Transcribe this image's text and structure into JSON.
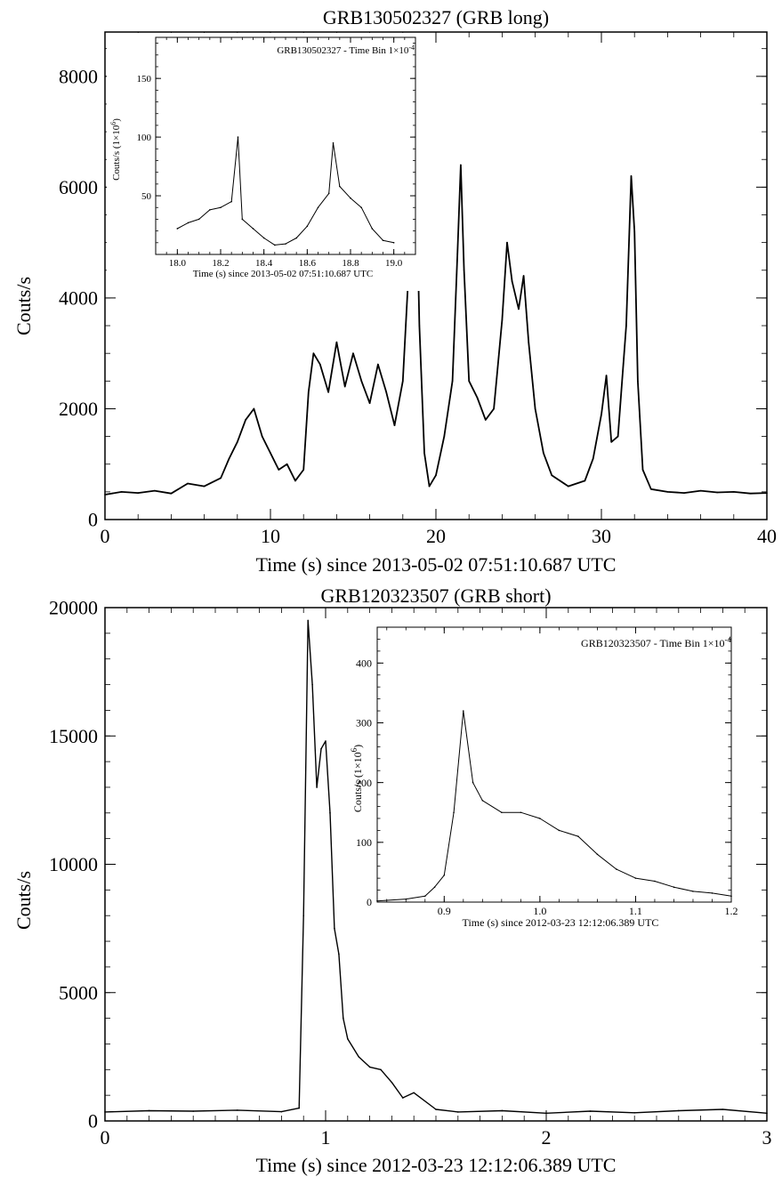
{
  "chart_data": [
    {
      "type": "line",
      "title": "GRB130502327 (GRB long)",
      "xlabel": "Time (s) since 2013-05-02 07:51:10.687 UTC",
      "ylabel": "Couts/s",
      "xlim": [
        0,
        40
      ],
      "ylim": [
        0,
        8800
      ],
      "xticks": [
        0,
        10,
        20,
        30,
        40
      ],
      "yticks": [
        0,
        2000,
        4000,
        6000,
        8000
      ],
      "grid": false,
      "series": [
        {
          "color": "#000000",
          "x": [
            0,
            1,
            2,
            3,
            4,
            5,
            6,
            7,
            7.5,
            8,
            8.5,
            9,
            9.5,
            10,
            10.5,
            11,
            11.5,
            12,
            12.3,
            12.6,
            13,
            13.5,
            14,
            14.5,
            15,
            15.5,
            16,
            16.5,
            17,
            17.5,
            18,
            18.3,
            18.6,
            18.8,
            19,
            19.3,
            19.6,
            20,
            20.5,
            21,
            21.3,
            21.5,
            21.7,
            22,
            22.5,
            23,
            23.5,
            24,
            24.3,
            24.6,
            25,
            25.3,
            25.6,
            26,
            26.5,
            27,
            28,
            29,
            29.5,
            30,
            30.3,
            30.6,
            31,
            31.5,
            31.8,
            32,
            32.2,
            32.5,
            33,
            34,
            35,
            36,
            37,
            38,
            39,
            40
          ],
          "y": [
            450,
            500,
            480,
            520,
            470,
            650,
            600,
            750,
            1100,
            1400,
            1800,
            2000,
            1500,
            1200,
            900,
            1000,
            700,
            900,
            2300,
            3000,
            2800,
            2300,
            3200,
            2400,
            3000,
            2500,
            2100,
            2800,
            2300,
            1700,
            2500,
            4200,
            5400,
            6300,
            3500,
            1200,
            600,
            800,
            1500,
            2500,
            4800,
            6400,
            4500,
            2500,
            2200,
            1800,
            2000,
            3600,
            5000,
            4300,
            3800,
            4400,
            3200,
            2000,
            1200,
            800,
            600,
            700,
            1100,
            1900,
            2600,
            1400,
            1500,
            3500,
            6200,
            5200,
            2500,
            900,
            550,
            500,
            480,
            520,
            490,
            500,
            470,
            480
          ]
        }
      ],
      "inset": {
        "type": "line",
        "title": "GRB130502327 - Time Bin 1×10",
        "title_exp": "-4",
        "xlabel": "Time (s) since 2013-05-02 07:51:10.687 UTC",
        "ylabel": "Couts/s (1×10",
        "ylabel_exp": "6",
        "ylabel_close": ")",
        "xlim": [
          17.9,
          19.1
        ],
        "ylim": [
          0,
          185
        ],
        "xticks": [
          "18.0",
          "18.2",
          "18.4",
          "18.6",
          "18.8",
          "19.0"
        ],
        "yticks": [
          50,
          100,
          150
        ],
        "series": [
          {
            "color": "#000000",
            "x": [
              18.0,
              18.05,
              18.1,
              18.15,
              18.2,
              18.25,
              18.28,
              18.3,
              18.35,
              18.4,
              18.45,
              18.5,
              18.55,
              18.6,
              18.65,
              18.7,
              18.72,
              18.75,
              18.8,
              18.85,
              18.9,
              18.95,
              19.0
            ],
            "y": [
              22,
              27,
              30,
              38,
              40,
              45,
              100,
              30,
              22,
              14,
              8,
              9,
              14,
              24,
              40,
              52,
              95,
              58,
              48,
              40,
              22,
              12,
              10
            ]
          }
        ]
      }
    },
    {
      "type": "line",
      "title": "GRB120323507 (GRB short)",
      "xlabel": "Time (s) since 2012-03-23 12:12:06.389 UTC",
      "ylabel": "Couts/s",
      "xlim": [
        0,
        3
      ],
      "ylim": [
        0,
        20000
      ],
      "xticks": [
        0,
        1,
        2,
        3
      ],
      "yticks": [
        0,
        5000,
        10000,
        15000,
        20000
      ],
      "grid": false,
      "series": [
        {
          "color": "#000000",
          "x": [
            0,
            0.2,
            0.4,
            0.6,
            0.8,
            0.88,
            0.9,
            0.92,
            0.94,
            0.96,
            0.98,
            1.0,
            1.02,
            1.04,
            1.06,
            1.08,
            1.1,
            1.15,
            1.2,
            1.25,
            1.3,
            1.35,
            1.4,
            1.5,
            1.6,
            1.8,
            2.0,
            2.2,
            2.4,
            2.6,
            2.8,
            3.0
          ],
          "y": [
            350,
            400,
            380,
            420,
            360,
            500,
            8000,
            19500,
            17000,
            13000,
            14500,
            14800,
            12000,
            7500,
            6500,
            4000,
            3200,
            2500,
            2100,
            2000,
            1500,
            900,
            1100,
            450,
            350,
            400,
            300,
            380,
            320,
            400,
            450,
            300
          ]
        }
      ],
      "inset": {
        "type": "line",
        "title": "GRB120323507 - Time Bin 1×10",
        "title_exp": "-4",
        "xlabel": "Time (s) since 2012-03-23 12:12:06.389 UTC",
        "ylabel": "Couts/s (1×10",
        "ylabel_exp": "6",
        "ylabel_close": ")",
        "xlim": [
          0.83,
          1.2
        ],
        "ylim": [
          0,
          460
        ],
        "xticks": [
          "0.9",
          "1.0",
          "1.1",
          "1.2"
        ],
        "yticks": [
          0,
          100,
          200,
          300,
          400
        ],
        "series": [
          {
            "color": "#000000",
            "x": [
              0.83,
              0.86,
              0.88,
              0.89,
              0.9,
              0.91,
              0.92,
              0.93,
              0.94,
              0.96,
              0.98,
              1.0,
              1.02,
              1.04,
              1.06,
              1.08,
              1.1,
              1.12,
              1.14,
              1.16,
              1.18,
              1.2
            ],
            "y": [
              2,
              5,
              10,
              25,
              45,
              150,
              320,
              200,
              170,
              150,
              150,
              140,
              120,
              110,
              80,
              55,
              40,
              35,
              25,
              18,
              15,
              10
            ]
          }
        ]
      }
    }
  ]
}
